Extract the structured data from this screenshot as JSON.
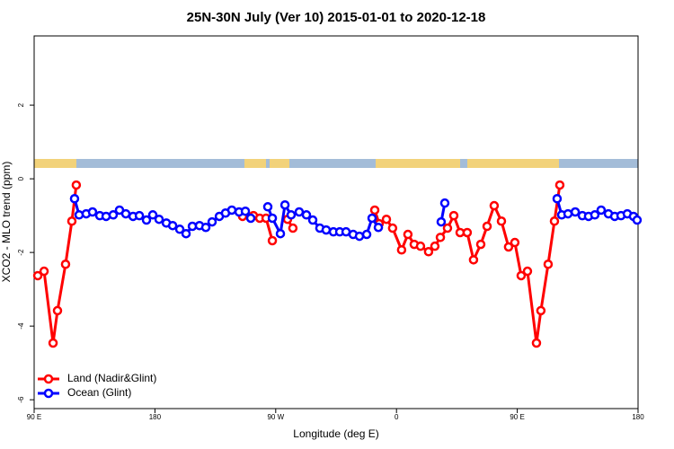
{
  "chart_data": {
    "type": "line",
    "title": "25N-30N July (Ver 10)   2015-01-01 to 2020-12-18",
    "x_label": "Longitude (deg E)",
    "y_label": "XCO2 - MLO trend (ppm)",
    "xlim": [
      90,
      540
    ],
    "ylim": [
      -6.24,
      3.88
    ],
    "xticks": [
      {
        "value": 90,
        "label": "90 E"
      },
      {
        "value": 180,
        "label": "180"
      },
      {
        "value": 270,
        "label": "90 W"
      },
      {
        "value": 360,
        "label": "0"
      },
      {
        "value": 450,
        "label": "90 E"
      },
      {
        "value": 540,
        "label": "180"
      }
    ],
    "yticks": [
      -6,
      -4,
      -2,
      0,
      2
    ],
    "legend": "bottom-left",
    "series": [
      {
        "name": "Land (Nadir&Glint)",
        "color": "#ff0000",
        "x": [
          92.7,
          97.4,
          104.1,
          107.4,
          113.4,
          118.1,
          121.4,
          null,
          245.3,
          253.4,
          258.1,
          262.8,
          267.5,
          null,
          278.8,
          282.8,
          null,
          343.8,
          347.1,
          352.5,
          357.1,
          363.8,
          368.5,
          373.2,
          377.9,
          383.9,
          388.6,
          392.7,
          398.0,
          402.7,
          407.4,
          412.7,
          417.4,
          422.8,
          427.5,
          432.8,
          438.2,
          443.5,
          448.2,
          452.9,
          457.6,
          464.3,
          467.6,
          473.0,
          477.7,
          481.7
        ],
        "values": [
          -2.63,
          -2.51,
          -4.46,
          -3.58,
          -2.32,
          -1.15,
          -0.17,
          null,
          -1.02,
          -1.0,
          -1.07,
          -1.07,
          -1.68,
          null,
          -1.1,
          -1.34,
          null,
          -0.85,
          -1.22,
          -1.1,
          -1.34,
          -1.93,
          -1.51,
          -1.78,
          -1.83,
          -1.98,
          -1.83,
          -1.59,
          -1.34,
          -1.0,
          -1.46,
          -1.46,
          -2.2,
          -1.78,
          -1.29,
          -0.73,
          -1.15,
          -1.85,
          -1.73,
          -2.63,
          -2.51,
          -4.46,
          -3.58,
          -2.32,
          -1.15,
          -0.17
        ]
      },
      {
        "name": "Ocean (Glint)",
        "color": "#0000ff",
        "x": [
          120.1,
          123.5,
          128.8,
          133.5,
          138.9,
          143.6,
          148.9,
          153.6,
          158.3,
          163.7,
          168.4,
          173.7,
          178.4,
          183.1,
          188.5,
          193.2,
          198.5,
          203.2,
          207.9,
          213.2,
          217.9,
          222.6,
          228.0,
          232.6,
          237.3,
          242.7,
          247.4,
          251.4,
          null,
          264.1,
          267.5,
          273.5,
          276.9,
          281.5,
          287.5,
          292.9,
          297.6,
          302.9,
          307.6,
          313.0,
          317.7,
          322.4,
          327.7,
          332.4,
          337.8,
          341.8,
          346.5,
          null,
          393.3,
          396.0,
          null,
          479.7,
          483.1,
          487.8,
          493.2,
          498.5,
          503.1,
          507.8,
          512.5,
          517.9,
          522.6,
          527.3,
          532.0,
          536.6,
          539.3
        ],
        "values": [
          -0.54,
          -0.98,
          -0.95,
          -0.9,
          -1.0,
          -1.02,
          -0.98,
          -0.85,
          -0.95,
          -1.02,
          -1.0,
          -1.12,
          -0.98,
          -1.1,
          -1.2,
          -1.27,
          -1.37,
          -1.49,
          -1.29,
          -1.27,
          -1.32,
          -1.17,
          -1.02,
          -0.93,
          -0.85,
          -0.9,
          -0.88,
          -1.07,
          null,
          -0.76,
          -1.07,
          -1.49,
          -0.71,
          -0.98,
          -0.9,
          -0.98,
          -1.12,
          -1.34,
          -1.39,
          -1.44,
          -1.44,
          -1.44,
          -1.51,
          -1.56,
          -1.51,
          -1.07,
          -1.32,
          null,
          -1.17,
          -0.66,
          null,
          -0.54,
          -0.98,
          -0.95,
          -0.9,
          -1.0,
          -1.02,
          -0.98,
          -0.85,
          -0.95,
          -1.02,
          -1.0,
          -0.95,
          -1.02,
          -1.12
        ]
      }
    ]
  }
}
